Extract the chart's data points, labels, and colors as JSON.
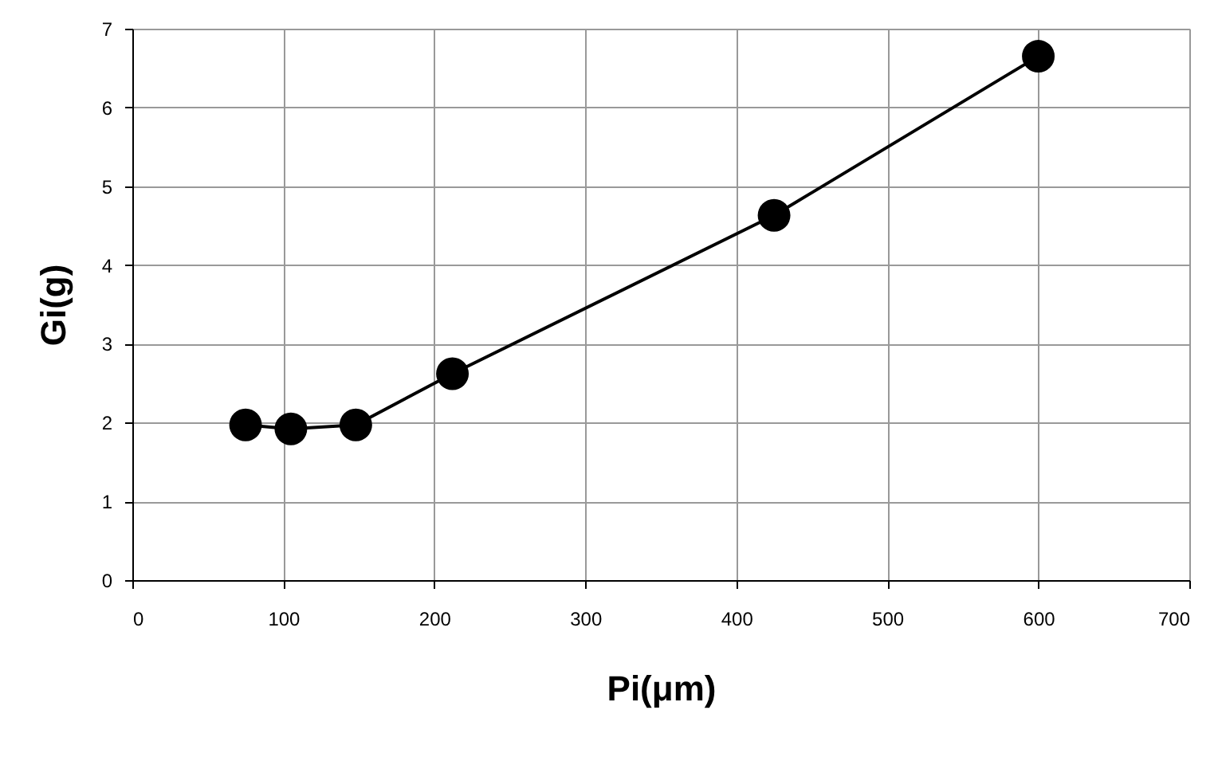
{
  "chart_data": {
    "type": "line",
    "xlabel": "Pi(μm)",
    "ylabel": "Gi(g)",
    "x": [
      75,
      105,
      148,
      212,
      425,
      600
    ],
    "series": [
      {
        "color": "#000000",
        "values": [
          1.97,
          1.92,
          1.97,
          2.62,
          4.63,
          6.65
        ]
      }
    ],
    "xlim": [
      0,
      700
    ],
    "xticks": [
      0,
      100,
      200,
      300,
      400,
      500,
      600,
      700
    ],
    "ylim": [
      0,
      7
    ],
    "yticks": [
      0,
      1,
      2,
      3,
      4,
      5,
      6,
      7
    ],
    "grid": true,
    "marker": "circle",
    "line_style": "solid"
  }
}
